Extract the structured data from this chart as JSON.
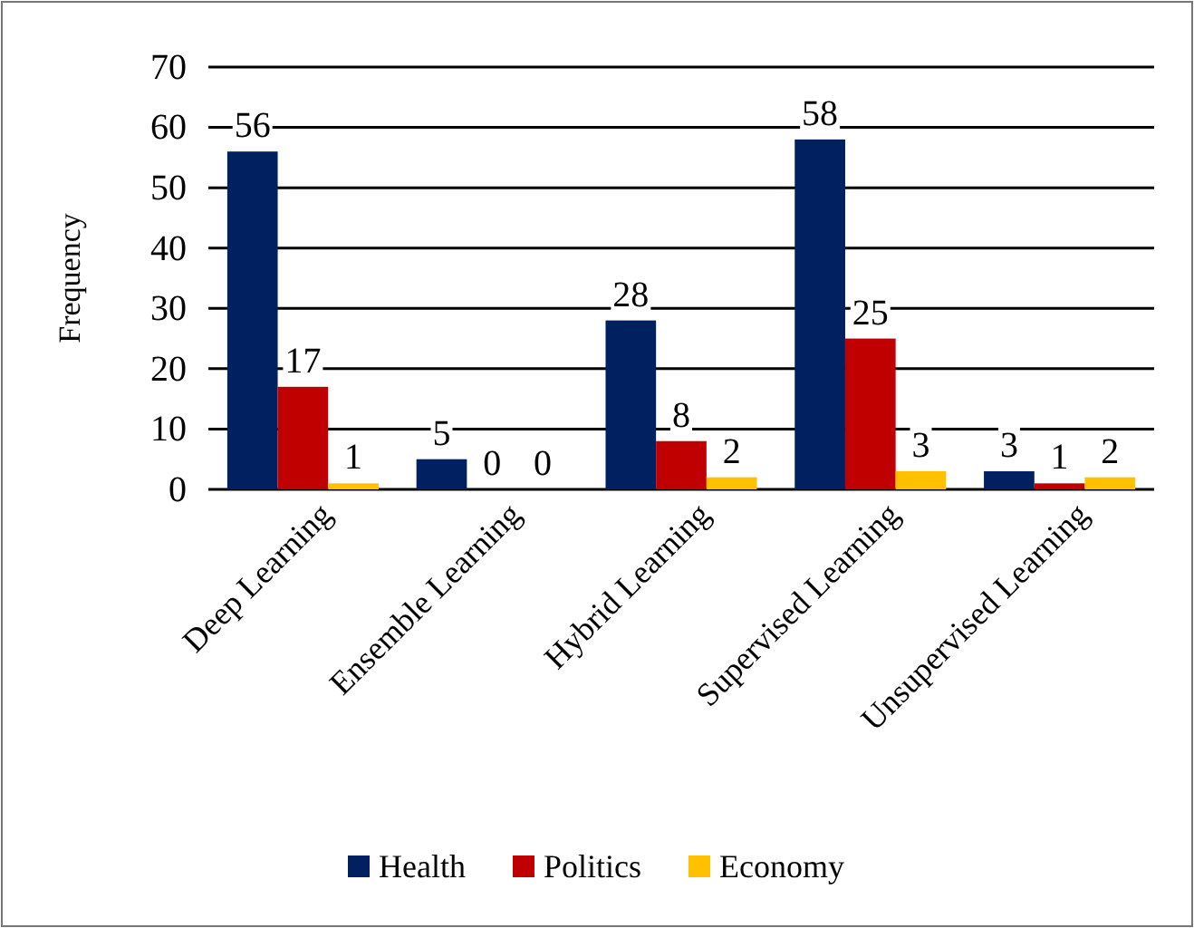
{
  "chart_data": {
    "type": "bar",
    "ylabel": "Frequency",
    "categories": [
      "Deep Learning",
      "Ensemble Learning",
      "Hybrid Learning",
      "Supervised Learning",
      "Unsupervised Learning"
    ],
    "series": [
      {
        "name": "Health",
        "color": "#002060",
        "values": [
          56,
          5,
          28,
          58,
          3
        ]
      },
      {
        "name": "Politics",
        "color": "#c00000",
        "values": [
          17,
          0,
          8,
          25,
          1
        ]
      },
      {
        "name": "Economy",
        "color": "#ffc000",
        "values": [
          1,
          0,
          2,
          3,
          2
        ]
      }
    ],
    "ylim": [
      0,
      70
    ],
    "yticks": [
      0,
      10,
      20,
      30,
      40,
      50,
      60,
      70
    ],
    "grid": "y",
    "legend": "bottom",
    "data_labels": true
  }
}
